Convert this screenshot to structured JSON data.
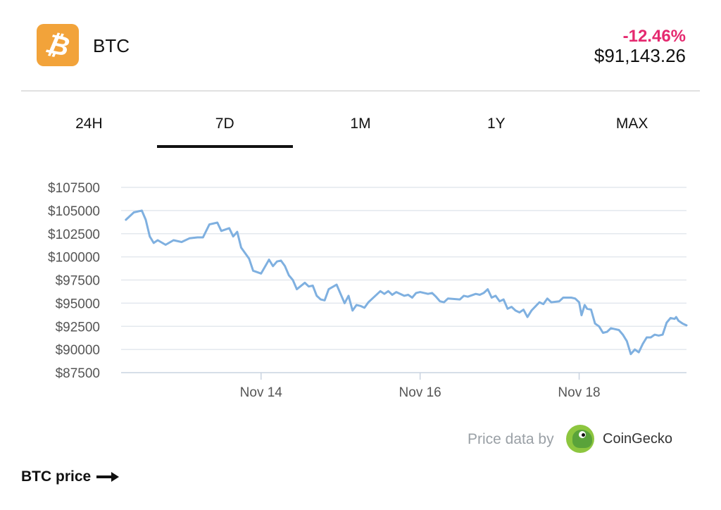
{
  "coin": {
    "icon": "bitcoin-icon",
    "logo_color": "#f2a33a",
    "symbol": "BTC",
    "change": "-12.46%",
    "change_color": "#e5296f",
    "price": "$91,143.26"
  },
  "tabs": [
    {
      "label": "24H",
      "active": false
    },
    {
      "label": "7D",
      "active": true
    },
    {
      "label": "1M",
      "active": false
    },
    {
      "label": "1Y",
      "active": false
    },
    {
      "label": "MAX",
      "active": false
    }
  ],
  "chart_data": {
    "type": "line",
    "line_color": "#7fb0e0",
    "ylim": [
      87500,
      107500
    ],
    "y_ticks": [
      87500,
      90000,
      92500,
      95000,
      97500,
      100000,
      102500,
      105000,
      107500
    ],
    "y_tick_labels": [
      "$87500",
      "$90000",
      "$92500",
      "$95000",
      "$97500",
      "$100000",
      "$102500",
      "$105000",
      "$107500"
    ],
    "x_ticks": [
      {
        "label": "Nov 14",
        "day": 14
      },
      {
        "label": "Nov 16",
        "day": 16
      },
      {
        "label": "Nov 18",
        "day": 18
      }
    ],
    "xlim": [
      12.24,
      19.35
    ],
    "grid": true,
    "series": [
      {
        "points": [
          [
            12.3,
            104000
          ],
          [
            12.4,
            104800
          ],
          [
            12.5,
            105000
          ],
          [
            12.55,
            104000
          ],
          [
            12.6,
            102200
          ],
          [
            12.65,
            101500
          ],
          [
            12.7,
            101800
          ],
          [
            12.8,
            101300
          ],
          [
            12.9,
            101800
          ],
          [
            13.0,
            101600
          ],
          [
            13.1,
            102000
          ],
          [
            13.2,
            102100
          ],
          [
            13.27,
            102100
          ],
          [
            13.35,
            103500
          ],
          [
            13.45,
            103700
          ],
          [
            13.5,
            102800
          ],
          [
            13.6,
            103100
          ],
          [
            13.65,
            102200
          ],
          [
            13.7,
            102700
          ],
          [
            13.75,
            101000
          ],
          [
            13.85,
            99800
          ],
          [
            13.9,
            98500
          ],
          [
            14.0,
            98200
          ],
          [
            14.1,
            99700
          ],
          [
            14.15,
            99000
          ],
          [
            14.2,
            99500
          ],
          [
            14.25,
            99600
          ],
          [
            14.3,
            99000
          ],
          [
            14.35,
            98000
          ],
          [
            14.4,
            97500
          ],
          [
            14.45,
            96500
          ],
          [
            14.55,
            97200
          ],
          [
            14.6,
            96800
          ],
          [
            14.65,
            96900
          ],
          [
            14.7,
            95800
          ],
          [
            14.75,
            95400
          ],
          [
            14.8,
            95300
          ],
          [
            14.85,
            96500
          ],
          [
            14.95,
            97000
          ],
          [
            15.0,
            96000
          ],
          [
            15.05,
            95000
          ],
          [
            15.1,
            95800
          ],
          [
            15.15,
            94200
          ],
          [
            15.2,
            94800
          ],
          [
            15.25,
            94700
          ],
          [
            15.3,
            94500
          ],
          [
            15.35,
            95100
          ],
          [
            15.4,
            95500
          ],
          [
            15.5,
            96300
          ],
          [
            15.55,
            96000
          ],
          [
            15.6,
            96300
          ],
          [
            15.65,
            95900
          ],
          [
            15.7,
            96200
          ],
          [
            15.8,
            95800
          ],
          [
            15.85,
            95900
          ],
          [
            15.9,
            95600
          ],
          [
            15.95,
            96100
          ],
          [
            16.0,
            96200
          ],
          [
            16.1,
            96000
          ],
          [
            16.15,
            96100
          ],
          [
            16.2,
            95700
          ],
          [
            16.25,
            95200
          ],
          [
            16.3,
            95100
          ],
          [
            16.35,
            95500
          ],
          [
            16.5,
            95400
          ],
          [
            16.55,
            95800
          ],
          [
            16.6,
            95700
          ],
          [
            16.7,
            96000
          ],
          [
            16.75,
            95900
          ],
          [
            16.8,
            96100
          ],
          [
            16.85,
            96500
          ],
          [
            16.9,
            95600
          ],
          [
            16.95,
            95800
          ],
          [
            17.0,
            95200
          ],
          [
            17.05,
            95400
          ],
          [
            17.1,
            94400
          ],
          [
            17.15,
            94600
          ],
          [
            17.2,
            94200
          ],
          [
            17.25,
            94000
          ],
          [
            17.3,
            94300
          ],
          [
            17.35,
            93500
          ],
          [
            17.4,
            94200
          ],
          [
            17.5,
            95100
          ],
          [
            17.55,
            94900
          ],
          [
            17.6,
            95500
          ],
          [
            17.65,
            95100
          ],
          [
            17.75,
            95200
          ],
          [
            17.8,
            95600
          ],
          [
            17.9,
            95600
          ],
          [
            17.95,
            95500
          ],
          [
            18.0,
            95100
          ],
          [
            18.03,
            93700
          ],
          [
            18.07,
            94800
          ],
          [
            18.1,
            94400
          ],
          [
            18.15,
            94300
          ],
          [
            18.2,
            92800
          ],
          [
            18.25,
            92500
          ],
          [
            18.3,
            91800
          ],
          [
            18.35,
            91900
          ],
          [
            18.4,
            92300
          ],
          [
            18.5,
            92100
          ],
          [
            18.55,
            91600
          ],
          [
            18.6,
            90900
          ],
          [
            18.65,
            89500
          ],
          [
            18.7,
            90000
          ],
          [
            18.75,
            89700
          ],
          [
            18.8,
            90600
          ],
          [
            18.85,
            91300
          ],
          [
            18.9,
            91300
          ],
          [
            18.95,
            91600
          ],
          [
            19.0,
            91500
          ],
          [
            19.05,
            91600
          ],
          [
            19.1,
            92900
          ],
          [
            19.15,
            93400
          ],
          [
            19.2,
            93300
          ],
          [
            19.22,
            93500
          ],
          [
            19.25,
            93100
          ],
          [
            19.3,
            92800
          ],
          [
            19.35,
            92600
          ]
        ]
      }
    ]
  },
  "credit": {
    "prefix": "Price data by",
    "logo_icon": "coingecko-icon",
    "brand": "CoinGecko"
  },
  "footer": {
    "link_label": "BTC price",
    "arrow_icon": "arrow-right-icon"
  }
}
